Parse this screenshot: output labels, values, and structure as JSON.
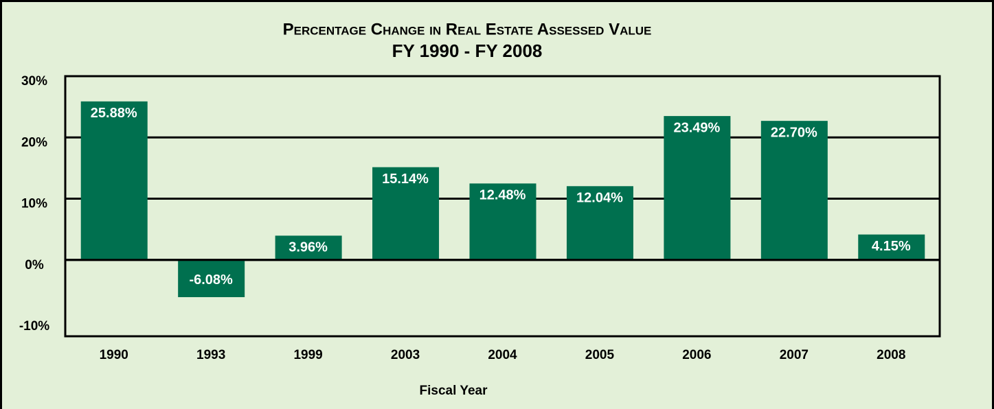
{
  "chart_data": {
    "type": "bar",
    "title": "Percentage Change in Real Estate Assessed Value",
    "subtitle": "FY 1990 - FY 2008",
    "x_label": "Fiscal Year",
    "categories": [
      "1990",
      "1993",
      "1999",
      "2003",
      "2004",
      "2005",
      "2006",
      "2007",
      "2008"
    ],
    "values": [
      25.88,
      -6.08,
      3.96,
      15.14,
      12.48,
      12.04,
      23.49,
      22.7,
      4.15
    ],
    "value_labels": [
      "25.88%",
      "-6.08%",
      "3.96%",
      "15.14%",
      "12.48%",
      "12.04%",
      "23.49%",
      "22.70%",
      "4.15%"
    ],
    "color": "#00704f",
    "ylim": [
      -10,
      30
    ],
    "yticks": [
      {
        "value": -10,
        "label": "-10%"
      },
      {
        "value": 0,
        "label": "0%"
      },
      {
        "value": 10,
        "label": "10%"
      },
      {
        "value": 20,
        "label": "20%"
      },
      {
        "value": 30,
        "label": "30%"
      }
    ],
    "grid": true
  }
}
